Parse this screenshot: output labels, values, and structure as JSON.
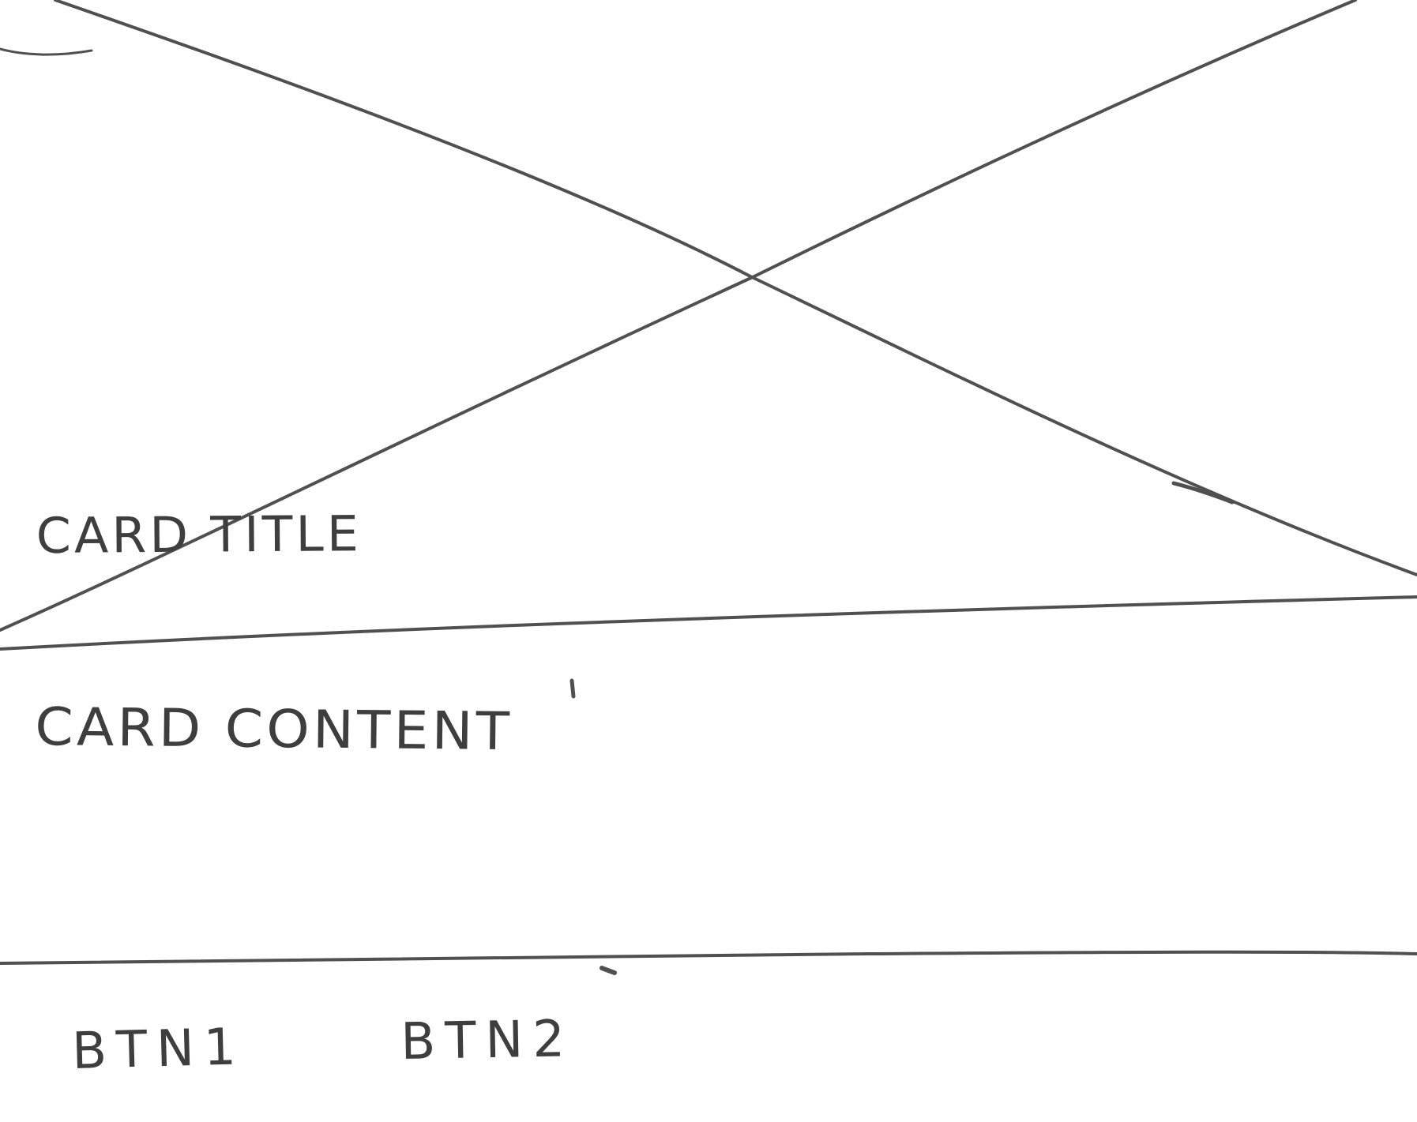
{
  "card": {
    "media": {
      "kind": "image-placeholder",
      "icon": "crossed-box-placeholder"
    },
    "title": "CARD TITLE",
    "content": "CARD CONTENT",
    "actions": [
      {
        "label": "BTN1"
      },
      {
        "label": "BTN2"
      }
    ]
  },
  "colors": {
    "ink": "#505050",
    "paper": "#ffffff"
  }
}
